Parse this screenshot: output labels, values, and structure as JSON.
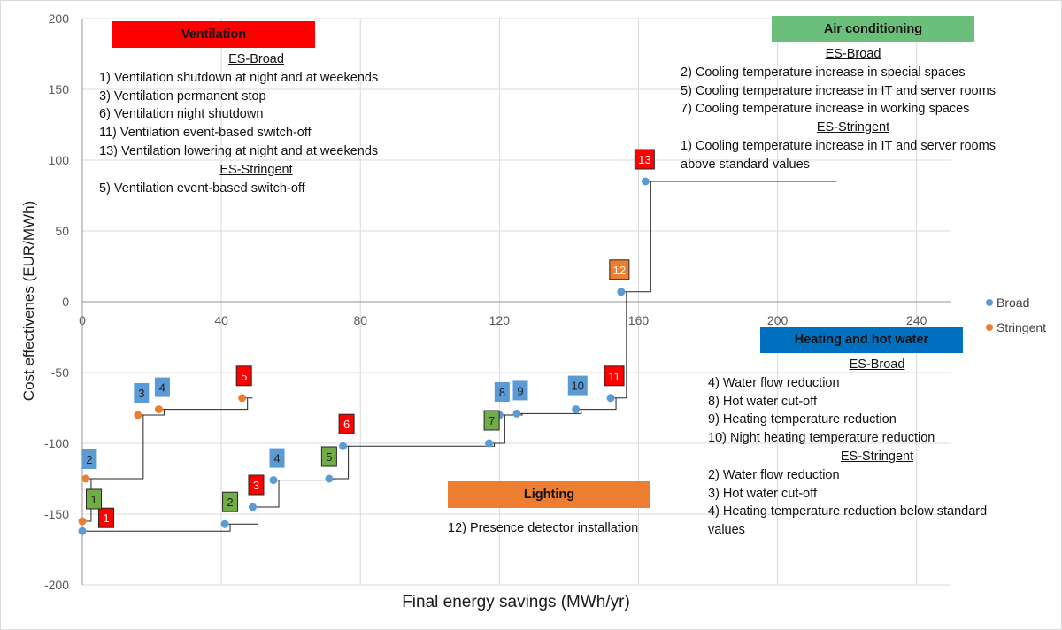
{
  "chart_data": {
    "type": "scatter",
    "xlabel": "Final energy savings (MWh/yr)",
    "ylabel": "Cost effectivenes (EUR/MWh)",
    "xlim": [
      0,
      250
    ],
    "ylim": [
      -200,
      200
    ],
    "x_ticks": [
      "0",
      "40",
      "80",
      "120",
      "160",
      "200",
      "240"
    ],
    "x_tick_values": [
      0,
      40,
      80,
      120,
      160,
      200,
      240
    ],
    "y_ticks": [
      "200",
      "150",
      "100",
      "50",
      "0",
      "-50",
      "-100",
      "-150",
      "-200"
    ],
    "y_tick_values": [
      200,
      150,
      100,
      50,
      0,
      -50,
      -100,
      -150,
      -200
    ],
    "grid": true,
    "legend_position": "right",
    "series": [
      {
        "name": "Broad",
        "color": "#5b9bd5",
        "points": [
          {
            "x": 0,
            "y": -162,
            "label": "1",
            "category": "ventilation"
          },
          {
            "x": 41,
            "y": -157,
            "label": "2",
            "category": "air_conditioning"
          },
          {
            "x": 49,
            "y": -145,
            "label": "3",
            "category": "ventilation"
          },
          {
            "x": 55,
            "y": -126,
            "label": "4",
            "category": "heating"
          },
          {
            "x": 71,
            "y": -125,
            "label": "5",
            "category": "air_conditioning"
          },
          {
            "x": 75,
            "y": -102,
            "label": "6",
            "category": "ventilation"
          },
          {
            "x": 117,
            "y": -100,
            "label": "7",
            "category": "air_conditioning"
          },
          {
            "x": 120,
            "y": -80,
            "label": "8",
            "category": "heating"
          },
          {
            "x": 125,
            "y": -79,
            "label": "9",
            "category": "heating"
          },
          {
            "x": 142,
            "y": -76,
            "label": "10",
            "category": "heating"
          },
          {
            "x": 152,
            "y": -68,
            "label": "11",
            "category": "ventilation"
          },
          {
            "x": 155,
            "y": 7,
            "label": "12",
            "category": "lighting"
          },
          {
            "x": 162,
            "y": 85,
            "label": "13",
            "category": "ventilation"
          }
        ],
        "step_end_x": 217
      },
      {
        "name": "Stringent",
        "color": "#ed7d31",
        "points": [
          {
            "x": 0,
            "y": -155,
            "label": "1",
            "category": "air_conditioning"
          },
          {
            "x": 1,
            "y": -125,
            "label": "2",
            "category": "heating"
          },
          {
            "x": 16,
            "y": -80,
            "label": "3",
            "category": "heating"
          },
          {
            "x": 22,
            "y": -76,
            "label": "4",
            "category": "heating"
          },
          {
            "x": 46,
            "y": -68,
            "label": "5",
            "category": "ventilation"
          }
        ],
        "step_end_x": 49
      }
    ],
    "category_colors": {
      "ventilation": "#ff0000",
      "air_conditioning": "#70ad47",
      "heating": "#5b9bd5",
      "lighting": "#ed7d31"
    }
  },
  "legend": {
    "broad": "Broad",
    "stringent": "Stringent"
  },
  "annotations": {
    "ventilation": {
      "title": "Ventilation",
      "color": "#ff0000",
      "broad_heading": "ES-Broad",
      "broad_items": [
        "1) Ventilation shutdown at night and at weekends",
        "3) Ventilation permanent stop",
        "6) Ventilation night shutdown",
        "11) Ventilation event-based switch-off",
        "13) Ventilation lowering at night and at weekends"
      ],
      "stringent_heading": "ES-Stringent",
      "stringent_items": [
        "5) Ventilation event-based switch-off"
      ]
    },
    "air_conditioning": {
      "title": "Air conditioning",
      "color": "#6cbf7a",
      "broad_heading": "ES-Broad",
      "broad_items": [
        "2) Cooling temperature increase in special spaces",
        "5) Cooling temperature increase in IT and server rooms",
        "7) Cooling temperature increase in working spaces"
      ],
      "stringent_heading": "ES-Stringent",
      "stringent_items": [
        "1) Cooling temperature increase in IT and server rooms",
        "above standard values"
      ]
    },
    "heating": {
      "title": "Heating and hot water",
      "color": "#0070c0",
      "broad_heading": "ES-Broad",
      "broad_items": [
        "4) Water flow reduction",
        "8) Hot water cut-off",
        "9) Heating temperature reduction",
        "10) Night heating temperature reduction"
      ],
      "stringent_heading": "ES-Stringent",
      "stringent_items": [
        "2) Water flow reduction",
        "3) Hot water cut-off",
        "4) Heating temperature reduction below standard",
        "values"
      ]
    },
    "lighting": {
      "title": "Lighting",
      "color": "#ed7d31",
      "broad_items": [
        "12) Presence detector installation"
      ]
    }
  }
}
